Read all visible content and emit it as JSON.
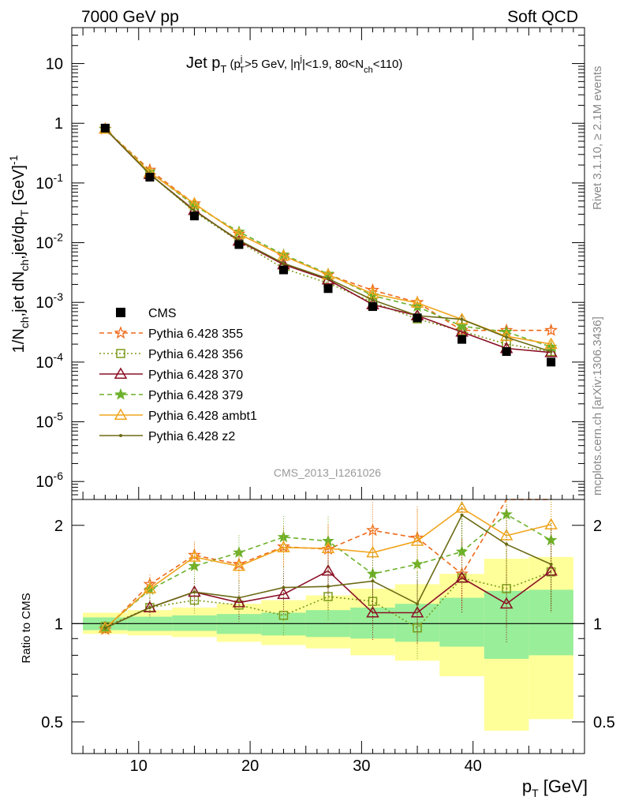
{
  "header": {
    "energy_label": "7000 GeV pp",
    "category_label": "Soft QCD"
  },
  "side_labels": {
    "rivet": "Rivet 3.1.10, ≥ 2.1M events",
    "mcplots": "mcplots.cern.ch [arXiv:1306.3436]"
  },
  "chart_data": [
    {
      "type": "line",
      "title_parts": {
        "t1": "Jet p",
        "t2": "T",
        "t3": " (p",
        "t4": "j",
        "t5": "T",
        "t6": ">5 GeV, |η",
        "t7": "j",
        "t8": "|<1.9, 80<N",
        "t9": "ch",
        "t10": "<110)"
      },
      "ylabel_parts": {
        "y1": "1/N",
        "y2": "ch",
        "y3": ",jet dN",
        "y4": "ch",
        "y5": ",jet/dp",
        "y6": "T",
        "y7": " [GeV]",
        "y8": "-1"
      },
      "watermark": "CMS_2013_I1261026",
      "yscale": "log",
      "ylim": [
        5e-07,
        40
      ],
      "xlim": [
        4,
        50
      ],
      "y_ticks": [
        {
          "value": 1e-06,
          "label": "10",
          "exp": "-6"
        },
        {
          "value": 1e-05,
          "label": "10",
          "exp": "-5"
        },
        {
          "value": 0.0001,
          "label": "10",
          "exp": "-4"
        },
        {
          "value": 0.001,
          "label": "10",
          "exp": "-3"
        },
        {
          "value": 0.01,
          "label": "10",
          "exp": "-2"
        },
        {
          "value": 0.1,
          "label": "10",
          "exp": "-1"
        },
        {
          "value": 1,
          "label": "1",
          "exp": ""
        },
        {
          "value": 10,
          "label": "10",
          "exp": ""
        }
      ],
      "legend_position": "left-middle",
      "x": [
        7,
        11,
        15,
        19,
        23,
        27,
        31,
        35,
        39,
        43,
        47
      ],
      "data": {
        "name": "CMS",
        "values": [
          0.83,
          0.125,
          0.028,
          0.0093,
          0.0035,
          0.0017,
          0.00085,
          0.00055,
          0.00024,
          0.00015,
          0.0001
        ],
        "color": "#000000"
      },
      "series": [
        {
          "name": "Pythia 6.428 355",
          "color": "#ee6a1a",
          "marker": "star-open",
          "dash": "6,4",
          "values": [
            0.8,
            0.165,
            0.045,
            0.014,
            0.006,
            0.0029,
            0.0016,
            0.001,
            0.00034,
            0.00034,
            0.00034
          ]
        },
        {
          "name": "Pythia 6.428 356",
          "color": "#7c9a1a",
          "marker": "square-open",
          "dash": "2,3",
          "values": [
            0.82,
            0.14,
            0.033,
            0.0105,
            0.0037,
            0.0021,
            0.001,
            0.00053,
            0.00033,
            0.0002,
            0.00015
          ]
        },
        {
          "name": "Pythia 6.428 370",
          "color": "#8b1026",
          "marker": "triangle-open",
          "dash": "",
          "values": [
            0.8,
            0.14,
            0.035,
            0.0107,
            0.0043,
            0.0024,
            0.00092,
            0.0006,
            0.00032,
            0.00017,
            0.000145
          ]
        },
        {
          "name": "Pythia 6.428 379",
          "color": "#6cb12a",
          "marker": "star-filled",
          "dash": "6,4",
          "values": [
            0.8,
            0.155,
            0.042,
            0.0152,
            0.0063,
            0.003,
            0.0013,
            0.00085,
            0.0004,
            0.00032,
            0.00018
          ]
        },
        {
          "name": "Pythia 6.428 ambt1",
          "color": "#f0a51e",
          "marker": "triangle-open",
          "dash": "",
          "values": [
            0.8,
            0.15,
            0.045,
            0.014,
            0.006,
            0.0029,
            0.0014,
            0.00098,
            0.00052,
            0.00027,
            0.0002
          ]
        },
        {
          "name": "Pythia 6.428 z2",
          "color": "#6b6a15",
          "marker": "dot",
          "dash": "",
          "values": [
            0.81,
            0.14,
            0.034,
            0.011,
            0.0045,
            0.0025,
            0.0011,
            0.0006,
            0.00052,
            0.00026,
            0.00015
          ]
        }
      ]
    },
    {
      "type": "line",
      "ylabel": "Ratio to CMS",
      "xlabel_parts": {
        "x1": "p",
        "x2": "T",
        "x3": " [GeV]"
      },
      "yscale": "log",
      "ylim": [
        0.4,
        2.4
      ],
      "xlim": [
        4,
        50
      ],
      "x_ticks": [
        10,
        20,
        30,
        40
      ],
      "y_ticks": [
        0.5,
        1,
        2
      ],
      "x": [
        7,
        11,
        15,
        19,
        23,
        27,
        31,
        35,
        39,
        43,
        47
      ],
      "bins": [
        [
          5,
          9
        ],
        [
          9,
          13
        ],
        [
          13,
          17
        ],
        [
          17,
          21
        ],
        [
          21,
          25
        ],
        [
          25,
          29
        ],
        [
          29,
          33
        ],
        [
          33,
          37
        ],
        [
          37,
          41
        ],
        [
          41,
          45
        ],
        [
          45,
          49
        ]
      ],
      "band_inner": [
        [
          0.955,
          1.045
        ],
        [
          0.95,
          1.05
        ],
        [
          0.95,
          1.06
        ],
        [
          0.93,
          1.07
        ],
        [
          0.92,
          1.08
        ],
        [
          0.91,
          1.1
        ],
        [
          0.9,
          1.12
        ],
        [
          0.88,
          1.15
        ],
        [
          0.85,
          1.2
        ],
        [
          0.78,
          1.26
        ],
        [
          0.8,
          1.27
        ]
      ],
      "band_outer": [
        [
          0.93,
          1.08
        ],
        [
          0.92,
          1.1
        ],
        [
          0.91,
          1.12
        ],
        [
          0.88,
          1.15
        ],
        [
          0.86,
          1.18
        ],
        [
          0.84,
          1.22
        ],
        [
          0.8,
          1.28
        ],
        [
          0.77,
          1.32
        ],
        [
          0.69,
          1.42
        ],
        [
          0.47,
          1.58
        ],
        [
          0.51,
          1.6
        ]
      ],
      "reference": 1,
      "series": [
        {
          "name": "Pythia 6.428 355",
          "color": "#ee6a1a",
          "marker": "star-open",
          "dash": "6,4",
          "values": [
            0.96,
            1.32,
            1.62,
            1.52,
            1.72,
            1.69,
            1.93,
            1.83,
            1.42,
            2.5,
            2.5
          ]
        },
        {
          "name": "Pythia 6.428 356",
          "color": "#7c9a1a",
          "marker": "square-open",
          "dash": "2,3",
          "values": [
            0.98,
            1.12,
            1.18,
            1.14,
            1.06,
            1.21,
            1.17,
            0.97,
            1.38,
            1.28,
            1.44
          ]
        },
        {
          "name": "Pythia 6.428 370",
          "color": "#8b1026",
          "marker": "triangle-open",
          "dash": "",
          "values": [
            0.97,
            1.12,
            1.25,
            1.16,
            1.23,
            1.45,
            1.08,
            1.08,
            1.38,
            1.15,
            1.45
          ]
        },
        {
          "name": "Pythia 6.428 379",
          "color": "#6cb12a",
          "marker": "star-filled",
          "dash": "6,4",
          "values": [
            0.97,
            1.27,
            1.5,
            1.65,
            1.84,
            1.79,
            1.42,
            1.52,
            1.66,
            2.16,
            1.8
          ]
        },
        {
          "name": "Pythia 6.428 ambt1",
          "color": "#f0a51e",
          "marker": "triangle-open",
          "dash": "",
          "values": [
            0.97,
            1.28,
            1.6,
            1.5,
            1.71,
            1.7,
            1.65,
            1.79,
            2.26,
            1.86,
            2.01
          ]
        },
        {
          "name": "Pythia 6.428 z2",
          "color": "#6b6a15",
          "marker": "dot",
          "dash": "",
          "values": [
            0.97,
            1.12,
            1.25,
            1.2,
            1.29,
            1.3,
            1.35,
            1.15,
            2.15,
            1.75,
            1.52
          ]
        }
      ]
    }
  ]
}
